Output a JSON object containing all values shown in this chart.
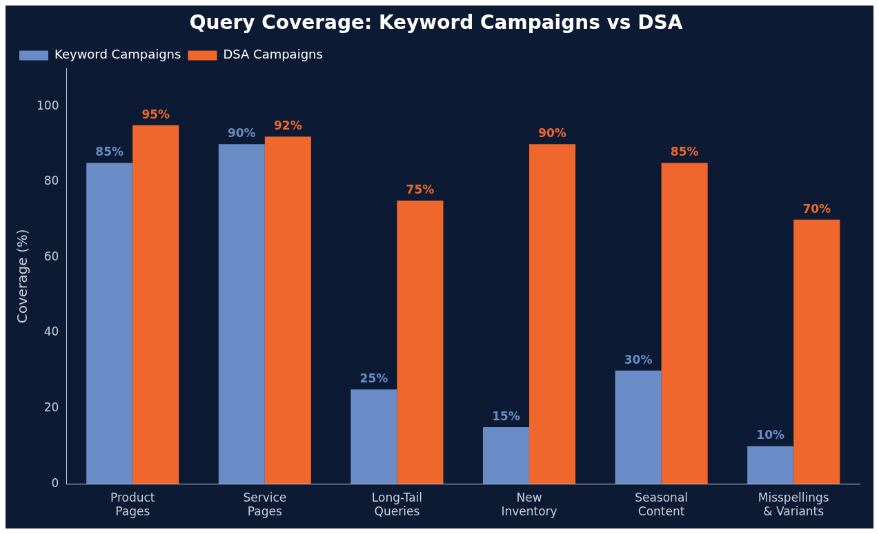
{
  "chart_data": {
    "type": "bar",
    "title": "Query Coverage: Keyword Campaigns vs DSA",
    "ylabel": "Coverage (%)",
    "categories": [
      "Product\nPages",
      "Service\nPages",
      "Long-Tail\nQueries",
      "New\nInventory",
      "Seasonal\nContent",
      "Misspellings\n& Variants"
    ],
    "series": [
      {
        "name": "Keyword Campaigns",
        "color": "#6a8cc6",
        "values": [
          85,
          90,
          25,
          15,
          30,
          10
        ],
        "value_labels": [
          "85%",
          "90%",
          "25%",
          "15%",
          "30%",
          "10%"
        ]
      },
      {
        "name": "DSA Campaigns",
        "color": "#f0672e",
        "values": [
          95,
          92,
          75,
          90,
          85,
          70
        ],
        "value_labels": [
          "95%",
          "92%",
          "75%",
          "90%",
          "85%",
          "70%"
        ]
      }
    ],
    "ylim": [
      0,
      110
    ],
    "yticks": [
      0,
      20,
      40,
      60,
      80,
      100
    ],
    "grid": false,
    "legend": "top left"
  }
}
